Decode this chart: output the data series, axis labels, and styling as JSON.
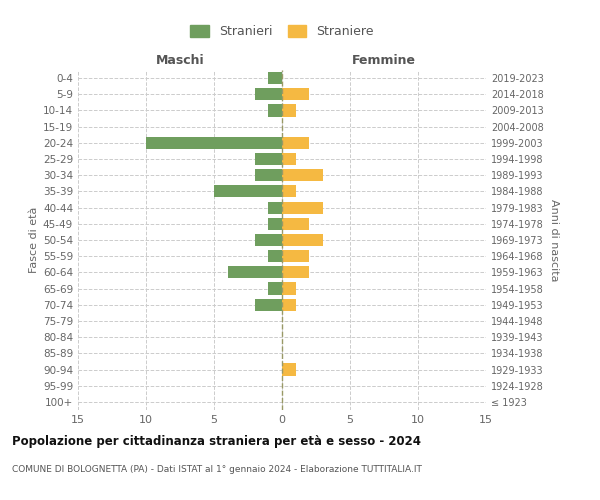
{
  "age_groups": [
    "100+",
    "95-99",
    "90-94",
    "85-89",
    "80-84",
    "75-79",
    "70-74",
    "65-69",
    "60-64",
    "55-59",
    "50-54",
    "45-49",
    "40-44",
    "35-39",
    "30-34",
    "25-29",
    "20-24",
    "15-19",
    "10-14",
    "5-9",
    "0-4"
  ],
  "birth_years": [
    "≤ 1923",
    "1924-1928",
    "1929-1933",
    "1934-1938",
    "1939-1943",
    "1944-1948",
    "1949-1953",
    "1954-1958",
    "1959-1963",
    "1964-1968",
    "1969-1973",
    "1974-1978",
    "1979-1983",
    "1984-1988",
    "1989-1993",
    "1994-1998",
    "1999-2003",
    "2004-2008",
    "2009-2013",
    "2014-2018",
    "2019-2023"
  ],
  "males": [
    0,
    0,
    0,
    0,
    0,
    0,
    2,
    1,
    4,
    1,
    2,
    1,
    1,
    5,
    2,
    2,
    10,
    0,
    1,
    2,
    1
  ],
  "females": [
    0,
    0,
    1,
    0,
    0,
    0,
    1,
    1,
    2,
    2,
    3,
    2,
    3,
    1,
    3,
    1,
    2,
    0,
    1,
    2,
    0
  ],
  "male_color": "#6f9e5e",
  "female_color": "#f5b942",
  "male_label": "Stranieri",
  "female_label": "Straniere",
  "title": "Popolazione per cittadinanza straniera per età e sesso - 2024",
  "subtitle": "COMUNE DI BOLOGNETTA (PA) - Dati ISTAT al 1° gennaio 2024 - Elaborazione TUTTITALIA.IT",
  "xlabel_left": "Maschi",
  "xlabel_right": "Femmine",
  "ylabel_left": "Fasce di età",
  "ylabel_right": "Anni di nascita",
  "xlim": 15,
  "background_color": "#ffffff",
  "grid_color": "#cccccc"
}
